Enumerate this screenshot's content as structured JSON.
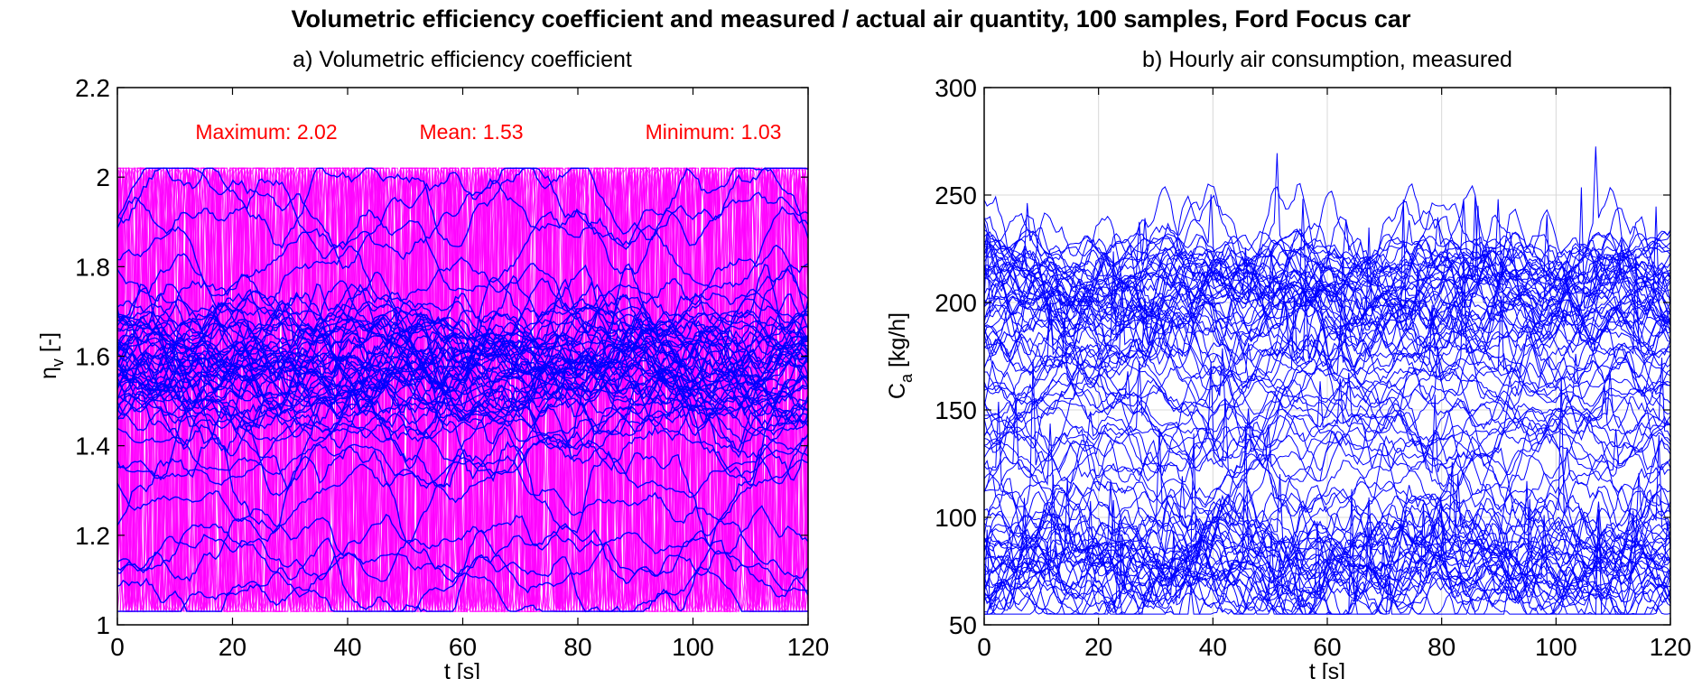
{
  "figure": {
    "title": "Volumetric efficiency coefficient and measured / actual air quantity, 100 samples, Ford Focus car"
  },
  "chart_data": [
    {
      "type": "line",
      "title": "a) Volumetric efficiency coefficient",
      "xlabel": "t [s]",
      "ylabel": "η_v [-]",
      "xlim": [
        0,
        120
      ],
      "ylim": [
        1,
        2.2
      ],
      "xticks": [
        0,
        20,
        40,
        60,
        80,
        100,
        120
      ],
      "yticks": [
        1,
        1.2,
        1.4,
        1.6,
        1.8,
        2,
        2.2
      ],
      "ytick_labels": [
        "1",
        "1.2",
        "1.4",
        "1.6",
        "1.8",
        "2",
        "2.2"
      ],
      "grid": false,
      "series_count": 100,
      "series_colors": [
        "#ff00ff",
        "#0000ff"
      ],
      "stats": {
        "maximum_label": "Maximum: 2.02",
        "mean_label": "Mean: 1.53",
        "minimum_label": "Minimum: 1.03",
        "maximum": 2.02,
        "mean": 1.53,
        "minimum": 1.03
      },
      "annotation_color": "#ff0000"
    },
    {
      "type": "line",
      "title": "b) Hourly air consumption, measured",
      "xlabel": "t [s]",
      "ylabel": "C_a [kg/h]",
      "xlim": [
        0,
        120
      ],
      "ylim": [
        50,
        300
      ],
      "xticks": [
        0,
        20,
        40,
        60,
        80,
        100,
        120
      ],
      "yticks": [
        50,
        100,
        150,
        200,
        250,
        300
      ],
      "ytick_labels": [
        "50",
        "100",
        "150",
        "200",
        "250",
        "300"
      ],
      "grid": true,
      "series_count": 100,
      "series_colors": [
        "#0000ff"
      ],
      "approx_range": [
        55,
        288
      ]
    }
  ]
}
